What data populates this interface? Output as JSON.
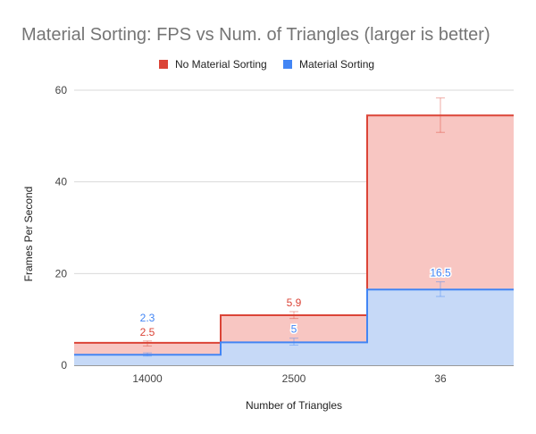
{
  "chart_data": {
    "type": "area",
    "title": "Material Sorting: FPS vs Num. of Triangles (larger is better)",
    "xlabel": "Number of Triangles",
    "ylabel": "Frames Per Second",
    "categories": [
      "14000",
      "2500",
      "36"
    ],
    "ylim": [
      0,
      60
    ],
    "yticks": [
      0,
      20,
      40,
      60
    ],
    "grid": true,
    "legend_position": "top",
    "series": [
      {
        "name": "No Material Sorting",
        "values": [
          4.9,
          10.9,
          54.5
        ],
        "error_high": [
          5.3,
          11.7,
          58.3
        ],
        "error_low": [
          4.2,
          10.2,
          50.8
        ],
        "data_labels": [
          "2.5",
          "5.9",
          ""
        ],
        "line_color": "#db4437",
        "fill_color": "#f8c6c2"
      },
      {
        "name": "Material Sorting",
        "values": [
          2.3,
          5.0,
          16.5
        ],
        "error_high": [
          2.7,
          5.9,
          18.2
        ],
        "error_low": [
          2.0,
          4.4,
          15.0
        ],
        "data_labels": [
          "2.3",
          "5",
          "16.5"
        ],
        "line_color": "#4285f4",
        "fill_color": "#c6d9f7"
      }
    ]
  }
}
